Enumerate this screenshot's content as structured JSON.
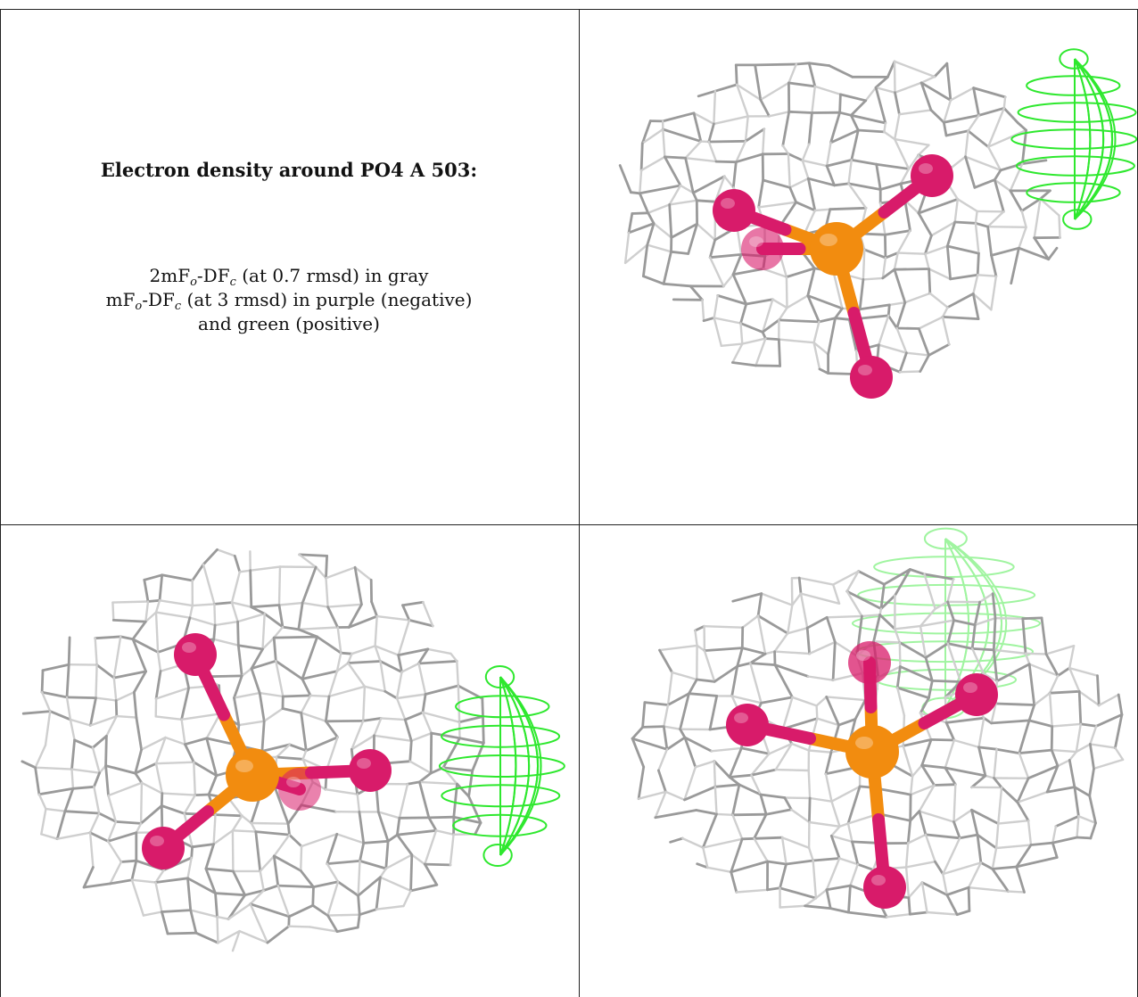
{
  "caption": {
    "title": "Electron density around PO4 A 503:",
    "line1": {
      "a": "2mF",
      "a_sub": "o",
      "b": "-DF",
      "b_sub": "c",
      "rest": " (at 0.7 rmsd) in gray"
    },
    "line2": {
      "a": "mF",
      "a_sub": "o",
      "b": "-DF",
      "b_sub": "c",
      "rest": " (at 3 rmsd) in purple (negative)"
    },
    "line3": "and green (positive)"
  },
  "colors": {
    "mesh_gray": "#9a9a9a",
    "mesh_light": "#cfcfcf",
    "difference_positive": "#2ee82e",
    "oxygen": "#d81b6a",
    "phosphorus": "#f28c0f",
    "rule": "#222222"
  },
  "views": [
    {
      "name": "view-top-right",
      "has_green_blob": true
    },
    {
      "name": "view-bottom-left",
      "has_green_blob": true
    },
    {
      "name": "view-bottom-right",
      "has_green_blob": true
    }
  ]
}
